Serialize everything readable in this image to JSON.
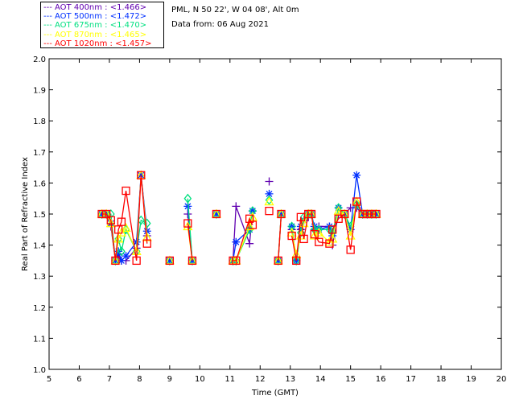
{
  "chart_data": {
    "type": "scatter",
    "title": "PML, N 50 22', W 04 08', Alt 0m",
    "subtitle": "Data from: 06 Aug 2021",
    "xlabel": "Time (GMT)",
    "ylabel": "Real Part of Refractive Index",
    "xlim": [
      5,
      20
    ],
    "ylim": [
      1.0,
      2.0
    ],
    "xticks": [
      "5",
      "6",
      "7",
      "8",
      "9",
      "10",
      "11",
      "12",
      "13",
      "14",
      "15",
      "16",
      "17",
      "18",
      "19",
      "20"
    ],
    "yticks": [
      "1.0",
      "1.1",
      "1.2",
      "1.3",
      "1.4",
      "1.5",
      "1.6",
      "1.7",
      "1.8",
      "1.9",
      "2.0"
    ],
    "legend_placement": "top-left-outside",
    "x": [
      6.75,
      6.9,
      7.05,
      7.2,
      7.3,
      7.4,
      7.55,
      7.9,
      8.05,
      8.25,
      9.0,
      9.6,
      9.75,
      10.55,
      11.1,
      11.2,
      11.65,
      11.75,
      12.3,
      12.6,
      12.7,
      13.05,
      13.2,
      13.35,
      13.45,
      13.6,
      13.7,
      13.8,
      13.95,
      14.3,
      14.4,
      14.6,
      14.8,
      15.0,
      15.2,
      15.4,
      15.55,
      15.7,
      15.85
    ],
    "breaks_after": [
      9,
      10,
      12,
      13,
      17,
      18,
      20
    ],
    "series": [
      {
        "name": "AOT  400nm : <1.466>",
        "color": "#6000b0",
        "marker": "plus",
        "values": [
          1.5,
          1.5,
          1.46,
          1.35,
          1.37,
          1.35,
          1.35,
          1.39,
          1.625,
          1.43,
          1.35,
          1.5,
          1.35,
          1.5,
          1.35,
          1.525,
          1.405,
          1.51,
          1.605,
          1.35,
          1.5,
          1.45,
          1.35,
          1.45,
          1.48,
          1.49,
          1.5,
          1.45,
          1.46,
          1.46,
          1.4,
          1.5,
          1.5,
          1.52,
          1.52,
          1.5,
          1.5,
          1.5,
          1.5
        ]
      },
      {
        "name": "AOT  500nm : <1.472>",
        "color": "#0030ff",
        "marker": "asterisk",
        "values": [
          1.5,
          1.5,
          1.47,
          1.35,
          1.38,
          1.35,
          1.365,
          1.41,
          1.625,
          1.445,
          1.35,
          1.525,
          1.35,
          1.5,
          1.35,
          1.41,
          1.45,
          1.51,
          1.565,
          1.35,
          1.5,
          1.46,
          1.35,
          1.46,
          1.48,
          1.5,
          1.5,
          1.46,
          1.45,
          1.46,
          1.43,
          1.52,
          1.5,
          1.45,
          1.625,
          1.5,
          1.5,
          1.5,
          1.5
        ]
      },
      {
        "name": "AOT  675nm : <1.470>",
        "color": "#00e080",
        "marker": "diamond",
        "values": [
          1.5,
          1.5,
          1.5,
          1.35,
          1.42,
          1.38,
          1.45,
          1.38,
          1.48,
          1.47,
          1.35,
          1.55,
          1.35,
          1.5,
          1.35,
          1.35,
          1.45,
          1.51,
          1.545,
          1.35,
          1.5,
          1.46,
          1.35,
          1.44,
          1.49,
          1.5,
          1.5,
          1.45,
          1.45,
          1.45,
          1.44,
          1.52,
          1.5,
          1.46,
          1.53,
          1.5,
          1.5,
          1.5,
          1.5
        ]
      },
      {
        "name": "AOT  870nm : <1.465>",
        "color": "#ffff00",
        "marker": "triangle",
        "values": [
          1.5,
          1.5,
          1.47,
          1.35,
          1.42,
          1.44,
          1.455,
          1.38,
          1.625,
          1.425,
          1.35,
          1.46,
          1.35,
          1.5,
          1.35,
          1.35,
          1.46,
          1.49,
          1.54,
          1.35,
          1.5,
          1.44,
          1.37,
          1.43,
          1.47,
          1.5,
          1.5,
          1.43,
          1.44,
          1.41,
          1.42,
          1.51,
          1.5,
          1.43,
          1.54,
          1.5,
          1.5,
          1.5,
          1.5
        ]
      },
      {
        "name": "AOT 1020nm : <1.457>",
        "color": "#ff0000",
        "marker": "square",
        "values": [
          1.5,
          1.5,
          1.48,
          1.35,
          1.45,
          1.475,
          1.575,
          1.35,
          1.625,
          1.405,
          1.35,
          1.47,
          1.35,
          1.5,
          1.35,
          1.35,
          1.485,
          1.465,
          1.51,
          1.35,
          1.5,
          1.43,
          1.35,
          1.49,
          1.42,
          1.5,
          1.5,
          1.435,
          1.41,
          1.405,
          1.45,
          1.485,
          1.5,
          1.385,
          1.54,
          1.5,
          1.5,
          1.5,
          1.5
        ]
      }
    ]
  }
}
